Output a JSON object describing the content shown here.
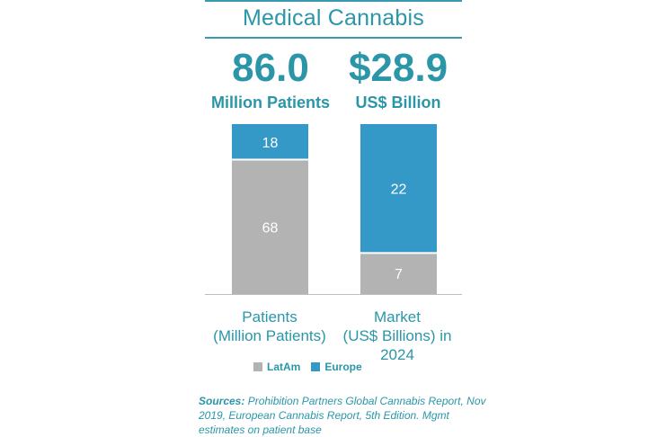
{
  "title": "Medical Cannabis",
  "headline": [
    {
      "value": "86.0",
      "label": "Million Patients"
    },
    {
      "value": "$28.9",
      "label": "US$ Billion"
    }
  ],
  "colors": {
    "accent": "#2a96a8",
    "latam": "#b3b3b3",
    "europe": "#3599c8"
  },
  "chart_data": {
    "type": "bar",
    "stacked": true,
    "categories": [
      "Patients\n(Million Patients)",
      "Market\n(US$ Billions) in 2024"
    ],
    "series": [
      {
        "name": "LatAm",
        "values": [
          68,
          7
        ]
      },
      {
        "name": "Europe",
        "values": [
          18,
          22
        ]
      }
    ],
    "legend_position": "bottom",
    "grid": false
  },
  "x_labels": [
    {
      "line1": "Patients",
      "line2": "(Million Patients)",
      "line3": ""
    },
    {
      "line1": "Market",
      "line2": "(US$ Billions) in",
      "line3": "2024"
    }
  ],
  "sources": {
    "label": "Sources:",
    "text": "Prohibition Partners Global Cannabis Report, Nov 2019, European Cannabis Report, 5th Edition. Mgmt estimates on patient base"
  }
}
